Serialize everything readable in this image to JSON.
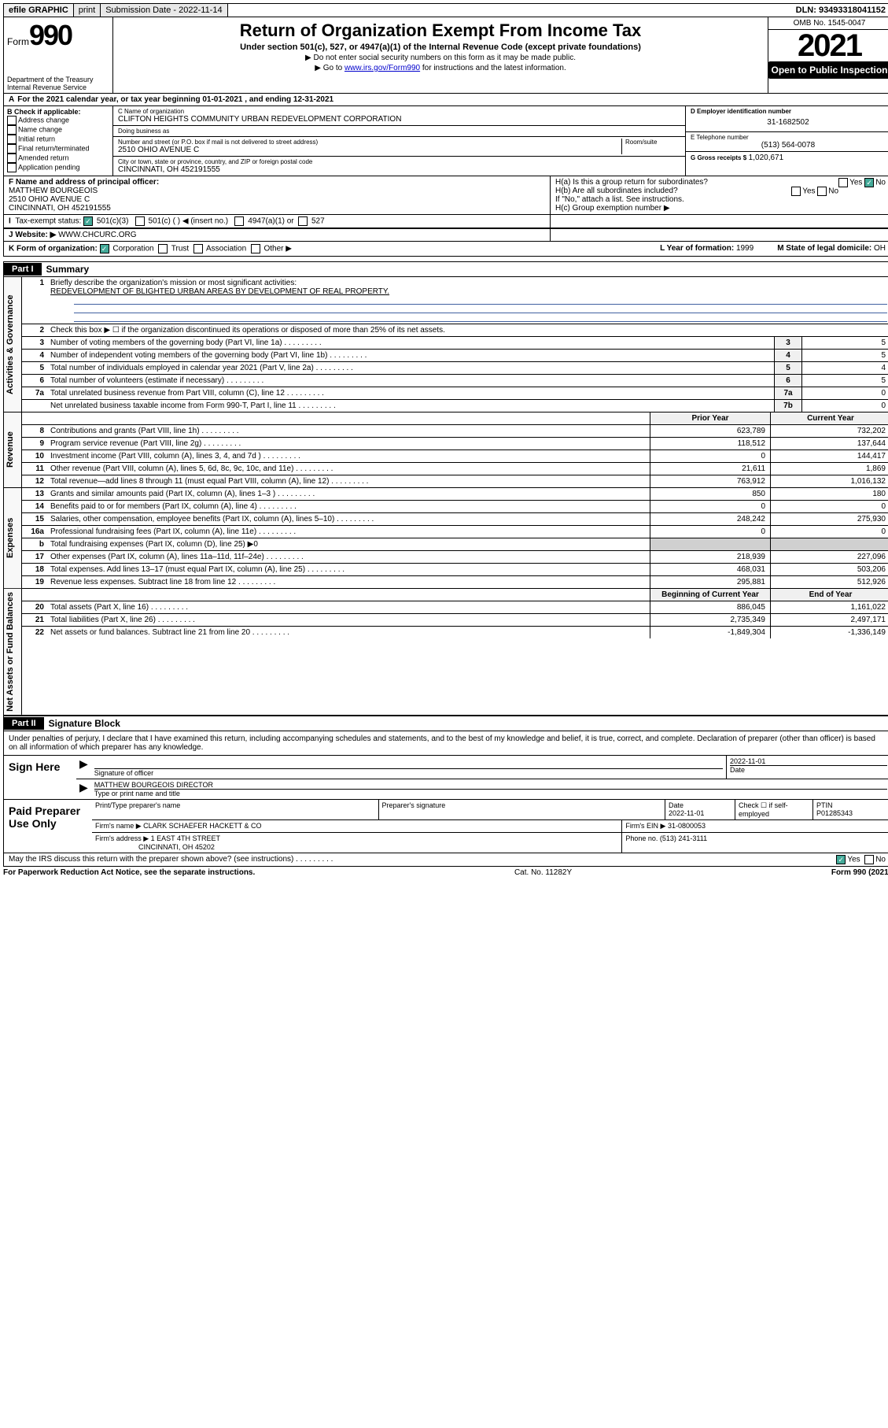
{
  "topbar": {
    "efile": "efile GRAPHIC",
    "print": "print",
    "submission": "Submission Date - 2022-11-14",
    "dln": "DLN: 93493318041152"
  },
  "header": {
    "form_label": "Form",
    "form_number": "990",
    "dept": "Department of the Treasury",
    "irs": "Internal Revenue Service",
    "title": "Return of Organization Exempt From Income Tax",
    "subtitle": "Under section 501(c), 527, or 4947(a)(1) of the Internal Revenue Code (except private foundations)",
    "note1": "▶ Do not enter social security numbers on this form as it may be made public.",
    "note2_prefix": "▶ Go to ",
    "note2_link": "www.irs.gov/Form990",
    "note2_suffix": " for instructions and the latest information.",
    "omb": "OMB No. 1545-0047",
    "year": "2021",
    "open_public": "Open to Public Inspection"
  },
  "tax_year": {
    "lettera": "A",
    "text": "For the 2021 calendar year, or tax year beginning 01-01-2021     , and ending 12-31-2021"
  },
  "colb": {
    "label": "B Check if applicable:",
    "items": [
      "Address change",
      "Name change",
      "Initial return",
      "Final return/terminated",
      "Amended return",
      "Application pending"
    ]
  },
  "colc": {
    "name_label": "C Name of organization",
    "name": "CLIFTON HEIGHTS COMMUNITY URBAN REDEVELOPMENT CORPORATION",
    "dba_label": "Doing business as",
    "dba": "",
    "addr_label": "Number and street (or P.O. box if mail is not delivered to street address)",
    "room_label": "Room/suite",
    "addr": "2510 OHIO AVENUE C",
    "city_label": "City or town, state or province, country, and ZIP or foreign postal code",
    "city": "CINCINNATI, OH  452191555"
  },
  "cold": {
    "ein_label": "D Employer identification number",
    "ein": "31-1682502",
    "phone_label": "E Telephone number",
    "phone": "(513) 564-0078",
    "gross_label": "G Gross receipts $",
    "gross": "1,020,671"
  },
  "rowf": {
    "label": "F Name and address of principal officer:",
    "name": "MATTHEW BOURGEOIS",
    "addr": "2510 OHIO AVENUE C",
    "city": "CINCINNATI, OH  452191555"
  },
  "rowh": {
    "a_label": "H(a)  Is this a group return for subordinates?",
    "a_yes": "Yes",
    "a_no": "No",
    "b_label": "H(b)  Are all subordinates included?",
    "b_yes": "Yes",
    "b_no": "No",
    "b_note": "If \"No,\" attach a list. See instructions.",
    "c_label": "H(c)  Group exemption number ▶"
  },
  "rowi": {
    "label": "Tax-exempt status:",
    "opts": [
      "501(c)(3)",
      "501(c) (   ) ◀ (insert no.)",
      "4947(a)(1) or",
      "527"
    ]
  },
  "rowj": {
    "label": "J   Website: ▶",
    "site": "WWW.CHCURC.ORG"
  },
  "rowk": {
    "label": "K Form of organization:",
    "opts": [
      "Corporation",
      "Trust",
      "Association",
      "Other ▶"
    ],
    "l_label": "L Year of formation:",
    "l_val": "1999",
    "m_label": "M State of legal domicile:",
    "m_val": "OH"
  },
  "part1": {
    "tag": "Part I",
    "title": "Summary",
    "sections": [
      {
        "label": "Activities & Governance",
        "rows": [
          {
            "n": "1",
            "d": "Briefly describe the organization's mission or most significant activities:",
            "mission": "REDEVELOPMENT OF BLIGHTED URBAN AREAS BY DEVELOPMENT OF REAL PROPERTY."
          },
          {
            "n": "2",
            "d": "Check this box ▶ ☐  if the organization discontinued its operations or disposed of more than 25% of its net assets."
          },
          {
            "n": "3",
            "d": "Number of voting members of the governing body (Part VI, line 1a)",
            "box": "3",
            "v": "5"
          },
          {
            "n": "4",
            "d": "Number of independent voting members of the governing body (Part VI, line 1b)",
            "box": "4",
            "v": "5"
          },
          {
            "n": "5",
            "d": "Total number of individuals employed in calendar year 2021 (Part V, line 2a)",
            "box": "5",
            "v": "4"
          },
          {
            "n": "6",
            "d": "Total number of volunteers (estimate if necessary)",
            "box": "6",
            "v": "5"
          },
          {
            "n": "7a",
            "d": "Total unrelated business revenue from Part VIII, column (C), line 12",
            "box": "7a",
            "v": "0"
          },
          {
            "n": "",
            "d": "Net unrelated business taxable income from Form 990-T, Part I, line 11",
            "box": "7b",
            "v": "0"
          }
        ]
      },
      {
        "label": "Revenue",
        "header": {
          "c1": "Prior Year",
          "c2": "Current Year"
        },
        "rows": [
          {
            "n": "8",
            "d": "Contributions and grants (Part VIII, line 1h)",
            "v1": "623,789",
            "v2": "732,202"
          },
          {
            "n": "9",
            "d": "Program service revenue (Part VIII, line 2g)",
            "v1": "118,512",
            "v2": "137,644"
          },
          {
            "n": "10",
            "d": "Investment income (Part VIII, column (A), lines 3, 4, and 7d )",
            "v1": "0",
            "v2": "144,417"
          },
          {
            "n": "11",
            "d": "Other revenue (Part VIII, column (A), lines 5, 6d, 8c, 9c, 10c, and 11e)",
            "v1": "21,611",
            "v2": "1,869"
          },
          {
            "n": "12",
            "d": "Total revenue—add lines 8 through 11 (must equal Part VIII, column (A), line 12)",
            "v1": "763,912",
            "v2": "1,016,132"
          }
        ]
      },
      {
        "label": "Expenses",
        "rows": [
          {
            "n": "13",
            "d": "Grants and similar amounts paid (Part IX, column (A), lines 1–3 )",
            "v1": "850",
            "v2": "180"
          },
          {
            "n": "14",
            "d": "Benefits paid to or for members (Part IX, column (A), line 4)",
            "v1": "0",
            "v2": "0"
          },
          {
            "n": "15",
            "d": "Salaries, other compensation, employee benefits (Part IX, column (A), lines 5–10)",
            "v1": "248,242",
            "v2": "275,930"
          },
          {
            "n": "16a",
            "d": "Professional fundraising fees (Part IX, column (A), line 11e)",
            "v1": "0",
            "v2": "0"
          },
          {
            "n": "b",
            "d": "Total fundraising expenses (Part IX, column (D), line 25) ▶0",
            "shaded": true
          },
          {
            "n": "17",
            "d": "Other expenses (Part IX, column (A), lines 11a–11d, 11f–24e)",
            "v1": "218,939",
            "v2": "227,096"
          },
          {
            "n": "18",
            "d": "Total expenses. Add lines 13–17 (must equal Part IX, column (A), line 25)",
            "v1": "468,031",
            "v2": "503,206"
          },
          {
            "n": "19",
            "d": "Revenue less expenses. Subtract line 18 from line 12",
            "v1": "295,881",
            "v2": "512,926"
          }
        ]
      },
      {
        "label": "Net Assets or Fund Balances",
        "header": {
          "c1": "Beginning of Current Year",
          "c2": "End of Year"
        },
        "rows": [
          {
            "n": "20",
            "d": "Total assets (Part X, line 16)",
            "v1": "886,045",
            "v2": "1,161,022"
          },
          {
            "n": "21",
            "d": "Total liabilities (Part X, line 26)",
            "v1": "2,735,349",
            "v2": "2,497,171"
          },
          {
            "n": "22",
            "d": "Net assets or fund balances. Subtract line 21 from line 20",
            "v1": "-1,849,304",
            "v2": "-1,336,149"
          }
        ]
      }
    ]
  },
  "part2": {
    "tag": "Part II",
    "title": "Signature Block",
    "declaration": "Under penalties of perjury, I declare that I have examined this return, including accompanying schedules and statements, and to the best of my knowledge and belief, it is true, correct, and complete. Declaration of preparer (other than officer) is based on all information of which preparer has any knowledge."
  },
  "sign": {
    "left": "Sign Here",
    "sig_label": "Signature of officer",
    "date": "2022-11-01",
    "date_label": "Date",
    "name": "MATTHEW BOURGEOIS  DIRECTOR",
    "name_label": "Type or print name and title"
  },
  "paid": {
    "left": "Paid Preparer Use Only",
    "h1": "Print/Type preparer's name",
    "h2": "Preparer's signature",
    "h3": "Date",
    "h3v": "2022-11-01",
    "h4": "Check ☐ if self-employed",
    "h5": "PTIN",
    "h5v": "P01285343",
    "firm_label": "Firm's name      ▶",
    "firm": "CLARK SCHAEFER HACKETT & CO",
    "ein_label": "Firm's EIN ▶",
    "ein": "31-0800053",
    "addr_label": "Firm's address ▶",
    "addr": "1 EAST 4TH STREET",
    "addr2": "CINCINNATI, OH  45202",
    "phone_label": "Phone no.",
    "phone": "(513) 241-3111"
  },
  "footer": {
    "q": "May the IRS discuss this return with the preparer shown above? (see instructions)",
    "yes": "Yes",
    "no": "No",
    "paperwork": "For Paperwork Reduction Act Notice, see the separate instructions.",
    "cat": "Cat. No. 11282Y",
    "form": "Form 990 (2021)"
  }
}
